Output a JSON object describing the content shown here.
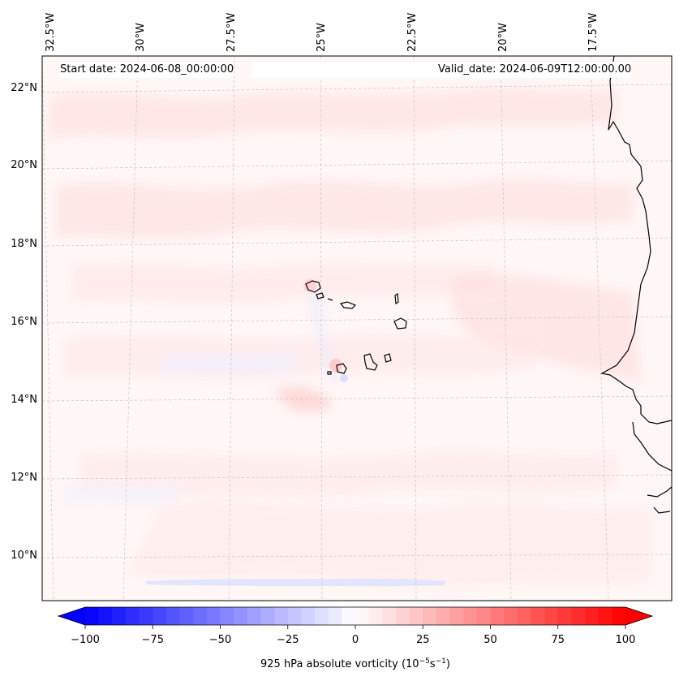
{
  "header": {
    "start_date": "Start date: 2024-06-08_00:00:00",
    "valid_date": "Valid_date: 2024-06-09T12:00:00.00"
  },
  "map": {
    "lon_ticks": [
      "32.5°W",
      "30°W",
      "27.5°W",
      "25°W",
      "22.5°W",
      "20°W",
      "17.5°W"
    ],
    "lat_ticks": [
      "22°N",
      "20°N",
      "18°N",
      "16°N",
      "14°N",
      "12°N",
      "10°N"
    ]
  },
  "colorbar": {
    "ticks": [
      "−100",
      "−75",
      "−50",
      "−25",
      "0",
      "25",
      "50",
      "75",
      "100"
    ],
    "label": "925 hPa absolute vorticity (10",
    "label_exp1": "−5",
    "label_mid": "s",
    "label_exp2": "−1",
    "label_end": ")",
    "min": -100,
    "max": 100,
    "levels": 41,
    "color_neg": "#0000ff",
    "color_zero": "#ffffff",
    "color_pos": "#ff0000"
  },
  "colors": {
    "background_field": "#fff6f6",
    "coastline": "#000000",
    "gridline": "#bbbbbb"
  }
}
